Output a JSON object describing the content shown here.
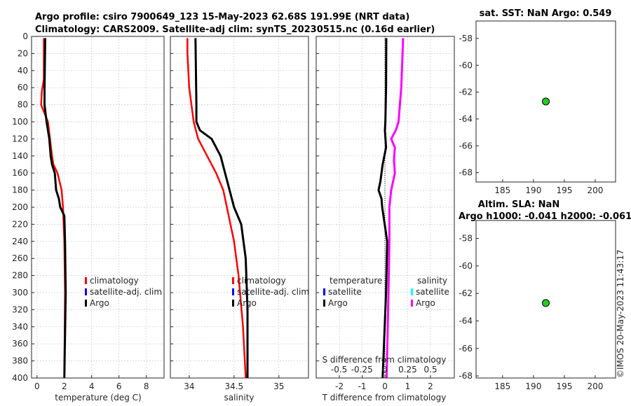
{
  "title_line1": "Argo profile: csiro 7900649_123 15-May-2023 62.68S 191.99E (NRT data)",
  "title_line2": "Climatology: CARS2009. Satellite-adj clim: synTS_20230515.nc (0.16d earlier)",
  "timestamp": "©IMOS 20-May-2023 11:43:17",
  "colors": {
    "climatology": "#ff0000",
    "satellite": "#0000ff",
    "argo": "#000000",
    "sal_satellite": "#00ffff",
    "sal_argo": "#ff00ff",
    "point": "#22cc22"
  },
  "chart_data": [
    {
      "type": "line",
      "xlabel": "temperature (deg C)",
      "xlim": [
        -0.4,
        9.3
      ],
      "ylim": [
        0,
        400
      ],
      "xticks": [
        "0",
        "2",
        "4",
        "6",
        "8"
      ],
      "xtickvals": [
        0,
        2,
        4,
        6,
        8
      ],
      "yticks": [
        "0",
        "20",
        "40",
        "60",
        "80",
        "100",
        "120",
        "140",
        "160",
        "180",
        "200",
        "220",
        "240",
        "260",
        "280",
        "300",
        "320",
        "340",
        "360",
        "380",
        "400"
      ],
      "legend": [
        "climatology",
        "satellite-adj. clim",
        "Argo"
      ],
      "series": [
        {
          "name": "climatology",
          "depth": [
            2,
            50,
            65,
            80,
            100,
            140,
            150,
            160,
            180,
            200,
            240,
            300,
            400
          ],
          "values": [
            0.5,
            0.5,
            0.35,
            0.3,
            0.8,
            1.1,
            1.2,
            1.5,
            1.8,
            1.9,
            2.0,
            2.05,
            2.0
          ]
        },
        {
          "name": "Argo",
          "depth": [
            2,
            60,
            80,
            100,
            120,
            140,
            150,
            160,
            180,
            190,
            200,
            210,
            240,
            300,
            400
          ],
          "values": [
            0.6,
            0.55,
            0.55,
            0.7,
            0.9,
            1.0,
            1.1,
            1.3,
            1.4,
            1.6,
            1.7,
            2.0,
            2.05,
            2.1,
            2.0
          ]
        }
      ]
    },
    {
      "type": "line",
      "xlabel": "salinity",
      "xlim": [
        33.79,
        35.33
      ],
      "ylim": [
        0,
        400
      ],
      "xticks": [
        "34",
        "34.5",
        "35"
      ],
      "xtickvals": [
        34,
        34.5,
        35
      ],
      "legend": [
        "climatology",
        "satellite-adj. clim",
        "Argo"
      ],
      "series": [
        {
          "name": "climatology",
          "depth": [
            2,
            20,
            60,
            100,
            120,
            140,
            160,
            180,
            200,
            240,
            280,
            340,
            400
          ],
          "values": [
            33.98,
            33.98,
            34.0,
            34.05,
            34.1,
            34.2,
            34.3,
            34.38,
            34.42,
            34.5,
            34.55,
            34.6,
            34.63
          ]
        },
        {
          "name": "Argo",
          "depth": [
            2,
            80,
            100,
            110,
            120,
            140,
            160,
            180,
            200,
            220,
            260,
            320,
            400
          ],
          "values": [
            34.07,
            34.08,
            34.08,
            34.12,
            34.25,
            34.35,
            34.4,
            34.45,
            34.5,
            34.58,
            34.63,
            34.65,
            34.65
          ]
        }
      ]
    },
    {
      "type": "line",
      "xlabel": "T difference from climatology",
      "x2label": "S difference from climatology",
      "xlim": [
        -3.02,
        3.05
      ],
      "x2lim": [
        -0.75,
        0.76
      ],
      "xticks": [
        "-2",
        "-1",
        "0",
        "1",
        "2"
      ],
      "xtickvals": [
        -2,
        -1,
        0,
        1,
        2
      ],
      "x2ticks": [
        "-0.5",
        "-0.25",
        "0",
        "0.25",
        "0.5"
      ],
      "x2tickvals": [
        -0.5,
        -0.25,
        0,
        0.25,
        0.5
      ],
      "ylim": [
        0,
        400
      ],
      "legend_t_title": "temperature",
      "legend_s_title": "salinity",
      "legend_t": [
        "satellite",
        "Argo"
      ],
      "legend_s": [
        "satellite",
        "Argo"
      ],
      "series": [
        {
          "name": "T Argo",
          "depth": [
            2,
            60,
            100,
            110,
            130,
            150,
            170,
            180,
            190,
            200,
            240,
            300,
            400
          ],
          "values": [
            0.06,
            0.05,
            0.02,
            0,
            0.05,
            -0.1,
            -0.2,
            -0.28,
            -0.15,
            -0.12,
            0.1,
            0.05,
            -0.1
          ]
        },
        {
          "name": "S Argo",
          "depth": [
            2,
            60,
            100,
            110,
            120,
            130,
            145,
            160,
            180,
            200,
            240,
            300,
            400
          ],
          "values": [
            0.2,
            0.18,
            0.15,
            0.12,
            0.07,
            0.11,
            0.1,
            0.11,
            0.07,
            0.05,
            0.05,
            0.04,
            0.02
          ]
        }
      ]
    },
    {
      "type": "scatter",
      "title": "sat. SST: NaN Argo: 0.549",
      "xlim": [
        180.7,
        203.3
      ],
      "ylim": [
        -68.7,
        -56.7
      ],
      "xticks": [
        "185",
        "190",
        "195",
        "200"
      ],
      "xtickvals": [
        185,
        190,
        195,
        200
      ],
      "yticks": [
        "-58",
        "-60",
        "-62",
        "-64",
        "-66",
        "-68"
      ],
      "ytickvals": [
        -58,
        -60,
        -62,
        -64,
        -66,
        -68
      ],
      "points": [
        {
          "x": 192,
          "y": -62.7
        }
      ]
    },
    {
      "type": "scatter",
      "title": "Altim. SLA: NaN",
      "title2": "Argo h1000: -0.041 h2000: -0.061",
      "xlim": [
        180.7,
        203.3
      ],
      "ylim": [
        -68.15,
        -56.7
      ],
      "xticks": [
        "185",
        "190",
        "195",
        "200"
      ],
      "xtickvals": [
        185,
        190,
        195,
        200
      ],
      "yticks": [
        "-58",
        "-60",
        "-62",
        "-64",
        "-66",
        "-68"
      ],
      "ytickvals": [
        -58,
        -60,
        -62,
        -64,
        -66,
        -68
      ],
      "points": [
        {
          "x": 192,
          "y": -62.7
        }
      ]
    }
  ]
}
